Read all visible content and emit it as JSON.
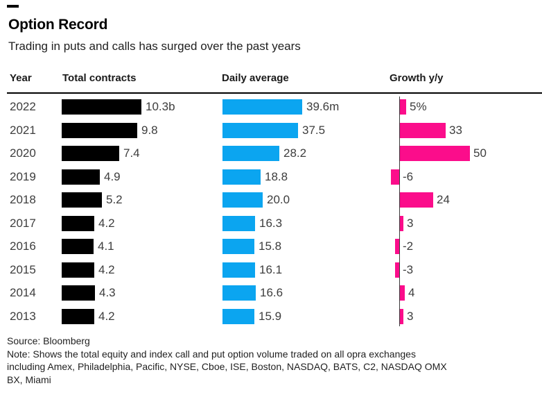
{
  "colors": {
    "total_bar": "#000000",
    "daily_bar": "#0ba5f0",
    "growth_bar": "#fb0d8b",
    "header_rule": "#000000",
    "axis_line": "#3a3a3a"
  },
  "header": {
    "title": "Option Record",
    "subtitle": "Trading in puts and calls has surged over the past years"
  },
  "table": {
    "columns": [
      "Year",
      "Total contracts",
      "Daily average",
      "Growth y/y"
    ]
  },
  "chart_data": {
    "type": "bar",
    "orientation": "horizontal",
    "categories": [
      "2022",
      "2021",
      "2020",
      "2019",
      "2018",
      "2017",
      "2016",
      "2015",
      "2014",
      "2013"
    ],
    "series": [
      {
        "name": "Total contracts",
        "unit": "billions of contracts",
        "color": "#000000",
        "axis_max": 10.3,
        "values": [
          10.3,
          9.8,
          7.4,
          4.9,
          5.2,
          4.2,
          4.1,
          4.2,
          4.3,
          4.2
        ],
        "labels": [
          "10.3b",
          "9.8",
          "7.4",
          "4.9",
          "5.2",
          "4.2",
          "4.1",
          "4.2",
          "4.3",
          "4.2"
        ]
      },
      {
        "name": "Daily average",
        "unit": "millions of contracts",
        "color": "#0ba5f0",
        "axis_max": 39.6,
        "values": [
          39.6,
          37.5,
          28.2,
          18.8,
          20.0,
          16.3,
          15.8,
          16.1,
          16.6,
          15.9
        ],
        "labels": [
          "39.6m",
          "37.5",
          "28.2",
          "18.8",
          "20.0",
          "16.3",
          "15.8",
          "16.1",
          "16.6",
          "15.9"
        ]
      },
      {
        "name": "Growth y/y",
        "unit": "percent",
        "color": "#fb0d8b",
        "axis_max": 50,
        "zero_baseline": true,
        "values": [
          5,
          33,
          50,
          -6,
          24,
          3,
          -2,
          -3,
          4,
          3
        ],
        "labels": [
          "5%",
          "33",
          "50",
          "-6",
          "24",
          "3",
          "-2",
          "-3",
          "4",
          "3"
        ]
      }
    ]
  },
  "footer": {
    "source": "Source: Bloomberg",
    "note_lines": [
      "Note: Shows the total equity and index call and put option volume traded on all opra exchanges",
      "including Amex, Philadelphia, Pacific, NYSE, Cboe, ISE, Boston, NASDAQ, BATS, C2, NASDAQ OMX",
      "BX, Miami"
    ]
  }
}
